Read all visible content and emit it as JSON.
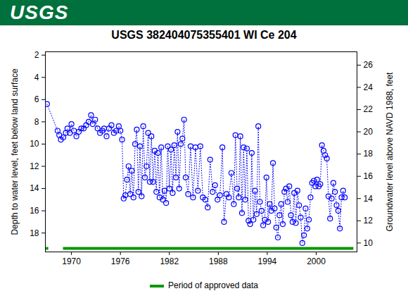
{
  "header": {
    "text": "USGS"
  },
  "chart_data": {
    "type": "scatter",
    "title": "USGS 382404075355401 WI Ce 204",
    "y_label": "Depth to water level, feet below land surface",
    "y2_label": "Groundwater level above NAVD 1988, feet",
    "color": "#0000ff",
    "marker": "circle",
    "line_style": "dotted",
    "xlim": [
      1966.8,
      2005.0
    ],
    "xticks": [
      1970,
      1976,
      1982,
      1988,
      1994,
      2000
    ],
    "ylim": [
      19.7,
      1.7
    ],
    "yticks": [
      2,
      4,
      6,
      8,
      10,
      12,
      14,
      16,
      18
    ],
    "y2lim": [
      9.2,
      27.2
    ],
    "y2ticks": [
      10,
      12,
      14,
      16,
      18,
      20,
      22,
      24,
      26
    ],
    "x": [
      1967.0,
      1968.3,
      1968.5,
      1968.7,
      1969.0,
      1969.3,
      1969.5,
      1969.8,
      1970.0,
      1970.3,
      1970.6,
      1970.9,
      1971.2,
      1971.5,
      1971.8,
      1972.1,
      1972.4,
      1972.6,
      1972.9,
      1973.2,
      1973.5,
      1973.8,
      1974.0,
      1974.3,
      1974.6,
      1974.9,
      1975.2,
      1975.5,
      1975.8,
      1976.0,
      1976.2,
      1976.4,
      1976.6,
      1976.8,
      1977.0,
      1977.2,
      1977.4,
      1977.6,
      1977.8,
      1978.0,
      1978.2,
      1978.4,
      1978.6,
      1978.8,
      1979.0,
      1979.2,
      1979.4,
      1979.6,
      1979.8,
      1980.0,
      1980.2,
      1980.4,
      1980.6,
      1980.8,
      1981.0,
      1981.2,
      1981.4,
      1981.6,
      1981.8,
      1982.0,
      1982.2,
      1982.4,
      1982.6,
      1982.8,
      1983.0,
      1983.2,
      1983.4,
      1983.6,
      1983.8,
      1984.0,
      1984.3,
      1984.6,
      1984.9,
      1985.2,
      1985.5,
      1985.8,
      1986.1,
      1986.4,
      1986.7,
      1987.0,
      1987.3,
      1987.6,
      1987.9,
      1988.2,
      1988.5,
      1988.7,
      1989.0,
      1989.3,
      1989.6,
      1989.9,
      1990.1,
      1990.3,
      1990.5,
      1990.7,
      1990.9,
      1991.1,
      1991.3,
      1991.5,
      1991.7,
      1991.9,
      1992.1,
      1992.3,
      1992.5,
      1992.7,
      1992.9,
      1993.1,
      1993.3,
      1993.5,
      1993.7,
      1993.9,
      1994.1,
      1994.3,
      1994.5,
      1994.7,
      1994.9,
      1995.1,
      1995.3,
      1995.5,
      1995.7,
      1995.9,
      1996.1,
      1996.3,
      1996.5,
      1996.7,
      1996.9,
      1997.1,
      1997.3,
      1997.5,
      1997.7,
      1997.9,
      1998.1,
      1998.3,
      1998.5,
      1998.7,
      1998.9,
      1999.1,
      1999.3,
      1999.5,
      1999.7,
      1999.9,
      2000.1,
      2000.3,
      2000.5,
      2000.7,
      2000.9,
      2001.1,
      2001.3,
      2001.5,
      2001.7,
      2001.9,
      2002.1,
      2002.3,
      2002.5,
      2002.7,
      2002.9,
      2003.1,
      2003.3,
      2003.5
    ],
    "values": [
      6.4,
      8.8,
      9.2,
      9.6,
      9.4,
      9.0,
      8.6,
      9.0,
      8.2,
      8.8,
      9.3,
      8.9,
      8.6,
      8.6,
      8.3,
      8.0,
      7.4,
      8.2,
      7.8,
      8.6,
      9.0,
      8.8,
      8.6,
      9.3,
      8.6,
      8.3,
      9.0,
      8.8,
      8.4,
      8.8,
      9.6,
      14.9,
      14.6,
      13.2,
      12.0,
      14.5,
      12.4,
      14.8,
      10.0,
      8.7,
      14.3,
      10.2,
      14.7,
      8.4,
      13.0,
      12.0,
      9.0,
      13.4,
      9.3,
      13.4,
      10.6,
      14.3,
      10.8,
      14.8,
      10.3,
      15.0,
      14.2,
      15.3,
      10.2,
      14.0,
      10.5,
      14.4,
      10.1,
      13.0,
      8.9,
      14.0,
      10.0,
      9.5,
      7.8,
      13.0,
      14.5,
      10.2,
      14.8,
      10.3,
      14.2,
      10.2,
      14.8,
      15.0,
      15.7,
      11.4,
      14.3,
      13.7,
      15.0,
      14.6,
      10.3,
      17.0,
      14.5,
      14.8,
      12.6,
      15.4,
      9.2,
      14.0,
      14.8,
      9.3,
      16.2,
      10.3,
      15.0,
      10.4,
      16.9,
      17.2,
      10.8,
      16.8,
      14.2,
      16.3,
      8.4,
      15.2,
      16.0,
      17.3,
      16.8,
      13.0,
      17.0,
      15.4,
      16.0,
      11.7,
      15.8,
      17.5,
      18.4,
      16.4,
      15.4,
      17.2,
      14.3,
      14.0,
      15.2,
      13.8,
      16.4,
      17.0,
      14.4,
      17.1,
      14.2,
      15.5,
      16.6,
      18.9,
      18.2,
      15.8,
      17.6,
      16.8,
      14.8,
      13.5,
      13.3,
      13.8,
      13.2,
      13.8,
      13.6,
      10.1,
      10.6,
      11.0,
      11.3,
      14.7,
      16.7,
      14.9,
      13.5,
      14.3,
      15.5,
      16.0,
      17.6,
      14.8,
      14.2,
      14.8
    ],
    "approved_data": {
      "label": "Period of approved data",
      "color": "#009900",
      "periods": [
        [
          1966.9,
          1967.2
        ],
        [
          1969.0,
          2004.6
        ]
      ]
    }
  }
}
